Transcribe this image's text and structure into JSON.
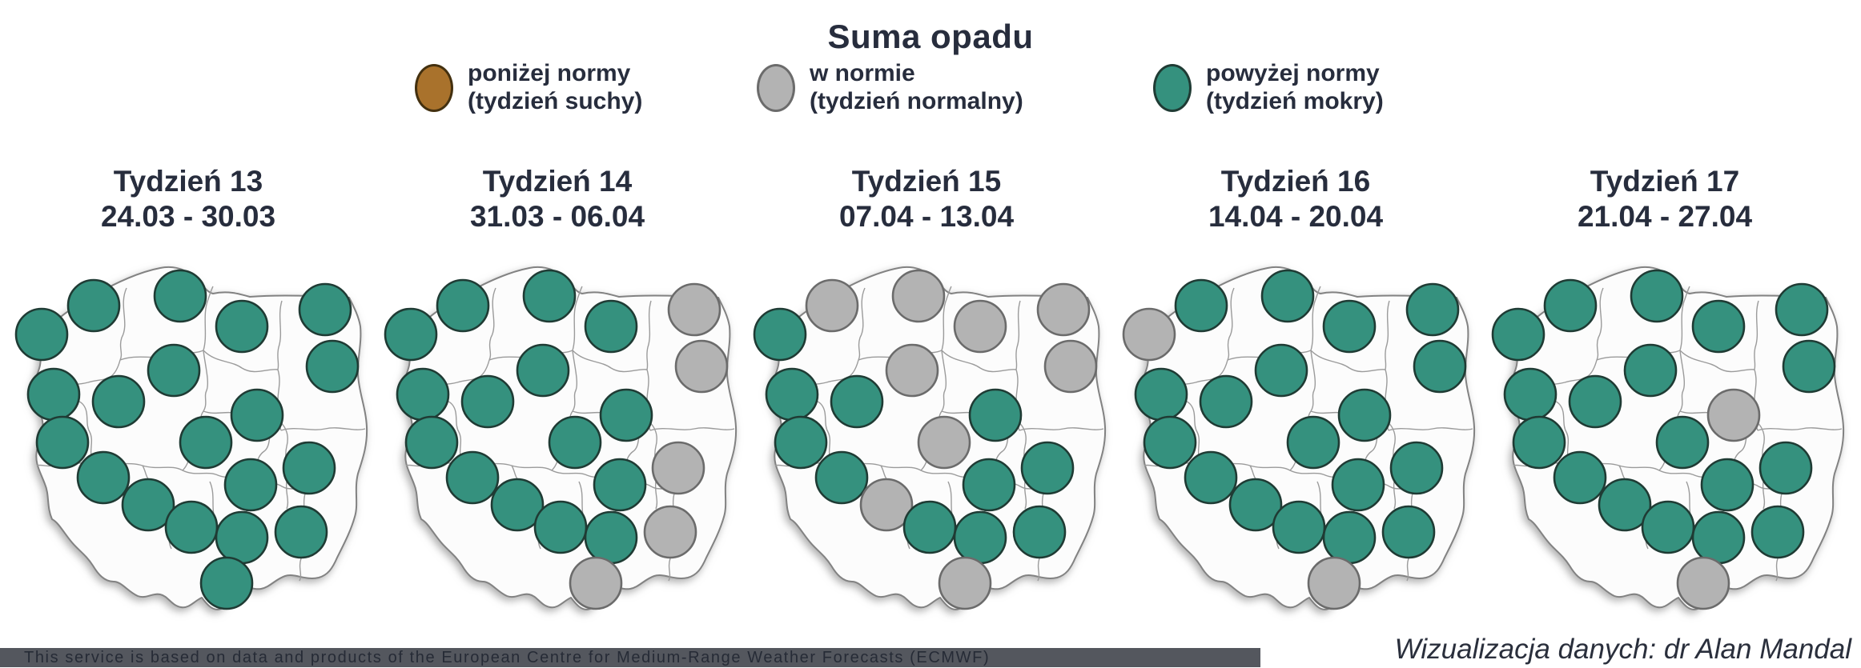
{
  "title": "Suma opadu",
  "legend": {
    "items": [
      {
        "id": "below",
        "line1": "poniżej normy",
        "line2": "(tydzień suchy)"
      },
      {
        "id": "normal",
        "line1": "w normie",
        "line2": "(tydzień normalny)"
      },
      {
        "id": "above",
        "line1": "powyżej normy",
        "line2": "(tydzień mokry)"
      }
    ]
  },
  "colors": {
    "below_fill": "#A9722C",
    "below_stroke": "#43300F",
    "normal_fill": "#B3B3B3",
    "normal_stroke": "#6B6B6B",
    "above_fill": "#35917E",
    "above_stroke": "#1F3B34",
    "text": "#272D3D",
    "footer_bar_bg": "#54575E"
  },
  "weeks": [
    {
      "label": "Tydzień 13",
      "dates": "24.03 - 30.03"
    },
    {
      "label": "Tydzień 14",
      "dates": "31.03 - 06.04"
    },
    {
      "label": "Tydzień 15",
      "dates": "07.04 - 13.04"
    },
    {
      "label": "Tydzień 16",
      "dates": "14.04 - 20.04"
    },
    {
      "label": "Tydzień 17",
      "dates": "21.04 - 27.04"
    }
  ],
  "footer": {
    "ecmwf_note": "This service is based on data and products of the European Centre for Medium-Range Weather Forecasts (ECMWF)",
    "credit": "Wizualizacja danych: dr Alan Mandal"
  },
  "chart_data": {
    "type": "map",
    "title": "Suma opadu",
    "region": "Poland with voivodeship borders, 5 weekly small-multiple maps",
    "value_scale": [
      "below",
      "normal",
      "above"
    ],
    "legend": [
      "poniżej normy (tydzień suchy)",
      "w normie (tydzień normalny)",
      "powyżej normy (tydzień mokry)"
    ],
    "dot_radius": 32,
    "dot_positions": [
      [
        52,
        88
      ],
      [
        117,
        52
      ],
      [
        225,
        40
      ],
      [
        302,
        78
      ],
      [
        406,
        57
      ],
      [
        415,
        128
      ],
      [
        217,
        133
      ],
      [
        67,
        163
      ],
      [
        148,
        172
      ],
      [
        321,
        189
      ],
      [
        78,
        223
      ],
      [
        257,
        223
      ],
      [
        386,
        255
      ],
      [
        129,
        267
      ],
      [
        313,
        276
      ],
      [
        185,
        301
      ],
      [
        239,
        329
      ],
      [
        302,
        342
      ],
      [
        376,
        335
      ],
      [
        283,
        399
      ]
    ],
    "series": [
      {
        "name": "Tydzień 13 (24.03 - 30.03)",
        "values": [
          "above",
          "above",
          "above",
          "above",
          "above",
          "above",
          "above",
          "above",
          "above",
          "above",
          "above",
          "above",
          "above",
          "above",
          "above",
          "above",
          "above",
          "above",
          "above",
          "above"
        ]
      },
      {
        "name": "Tydzień 14 (31.03 - 06.04)",
        "values": [
          "above",
          "above",
          "above",
          "above",
          "normal",
          "normal",
          "above",
          "above",
          "above",
          "above",
          "above",
          "above",
          "normal",
          "above",
          "above",
          "above",
          "above",
          "above",
          "normal",
          "normal"
        ]
      },
      {
        "name": "Tydzień 15 (07.04 - 13.04)",
        "values": [
          "above",
          "normal",
          "normal",
          "normal",
          "normal",
          "normal",
          "normal",
          "above",
          "above",
          "above",
          "above",
          "normal",
          "above",
          "above",
          "above",
          "normal",
          "above",
          "above",
          "above",
          "normal"
        ]
      },
      {
        "name": "Tydzień 16 (14.04 - 20.04)",
        "values": [
          "normal",
          "above",
          "above",
          "above",
          "above",
          "above",
          "above",
          "above",
          "above",
          "above",
          "above",
          "above",
          "above",
          "above",
          "above",
          "above",
          "above",
          "above",
          "above",
          "normal"
        ]
      },
      {
        "name": "Tydzień 17 (21.04 - 27.04)",
        "values": [
          "above",
          "above",
          "above",
          "above",
          "above",
          "above",
          "above",
          "above",
          "above",
          "normal",
          "above",
          "above",
          "above",
          "above",
          "above",
          "above",
          "above",
          "above",
          "above",
          "normal"
        ]
      }
    ]
  }
}
